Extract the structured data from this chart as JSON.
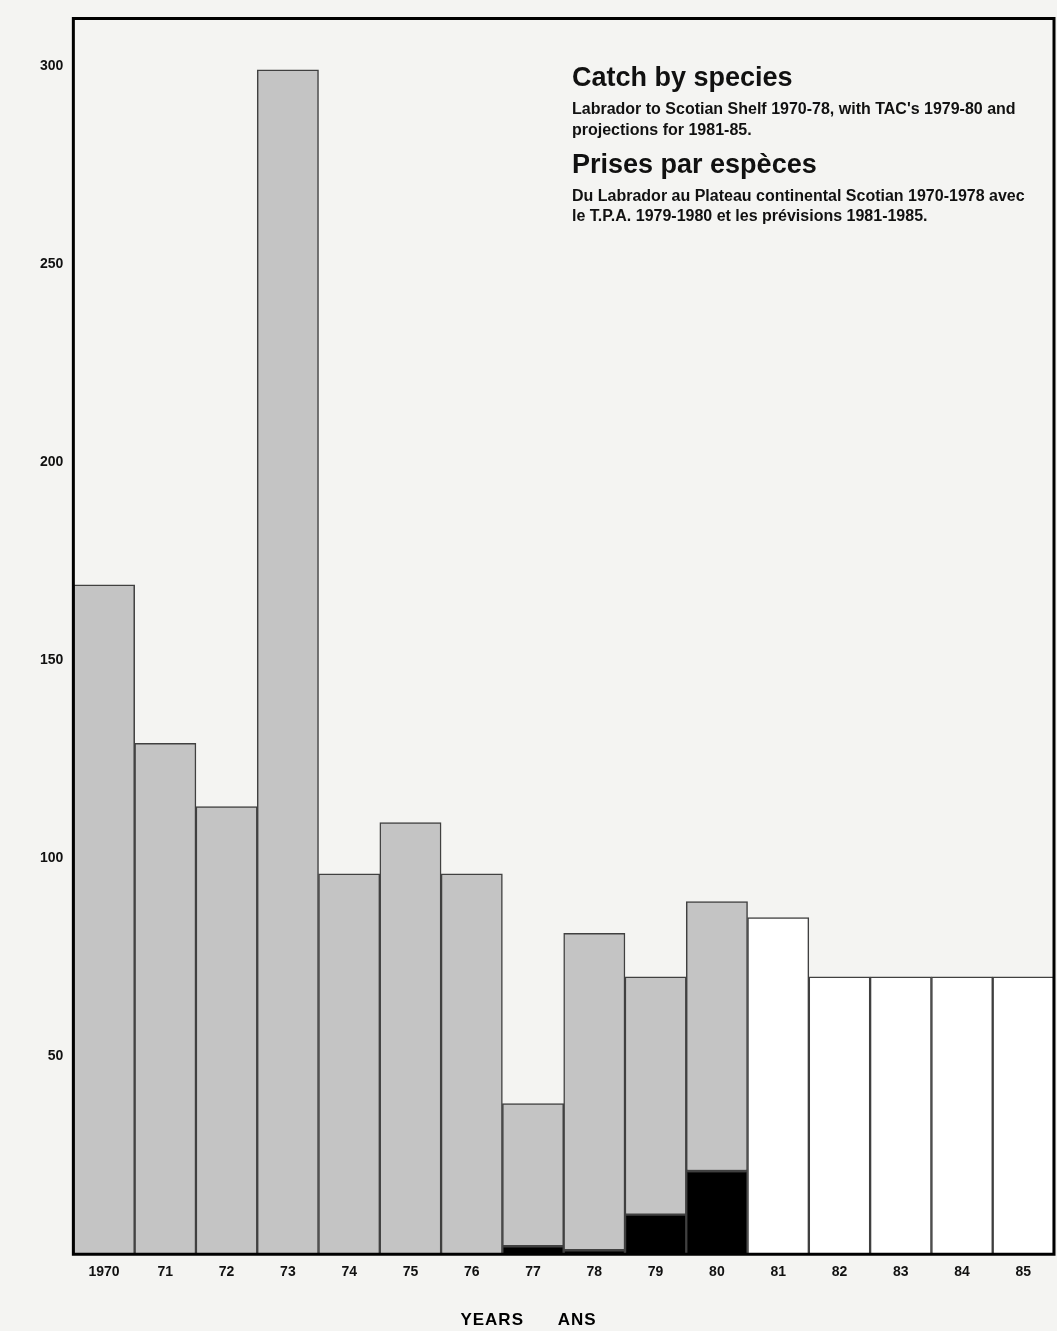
{
  "chart_data": {
    "type": "bar",
    "stacked": true,
    "title": "Catch by species",
    "subtitle": "Labrador to Scotian Shelf 1970-78, with TAC's 1979-80 and projections for 1981-85.",
    "annotations": [
      "Prises par espèces",
      "Du Labrador au Plateau continental Scotian 1970-1978 avec le T.P.A. 1979-1980 et les prévisions 1981-1985."
    ],
    "xlabel": "YEARS      ANS",
    "categories": [
      "1970",
      "71",
      "72",
      "73",
      "74",
      "75",
      "76",
      "77",
      "78",
      "79",
      "80",
      "81",
      "82",
      "83",
      "84",
      "85"
    ],
    "series": [
      {
        "color": "#000000",
        "values": [
          null,
          null,
          null,
          null,
          null,
          null,
          null,
          2,
          1,
          10,
          21,
          null,
          null,
          null,
          null,
          null
        ]
      },
      {
        "color": "#c4c4c4",
        "values": [
          169,
          129,
          113,
          299,
          96,
          109,
          96,
          36,
          80,
          60,
          68,
          null,
          null,
          null,
          null,
          null
        ]
      },
      {
        "color": "#ffffff",
        "values": [
          null,
          null,
          null,
          null,
          null,
          null,
          null,
          null,
          null,
          null,
          null,
          85,
          70,
          70,
          70,
          70
        ]
      }
    ],
    "ylim": [
      0,
      312
    ],
    "yticks": [
      50,
      100,
      150,
      200,
      250,
      300
    ],
    "grid": false,
    "legend": false
  }
}
